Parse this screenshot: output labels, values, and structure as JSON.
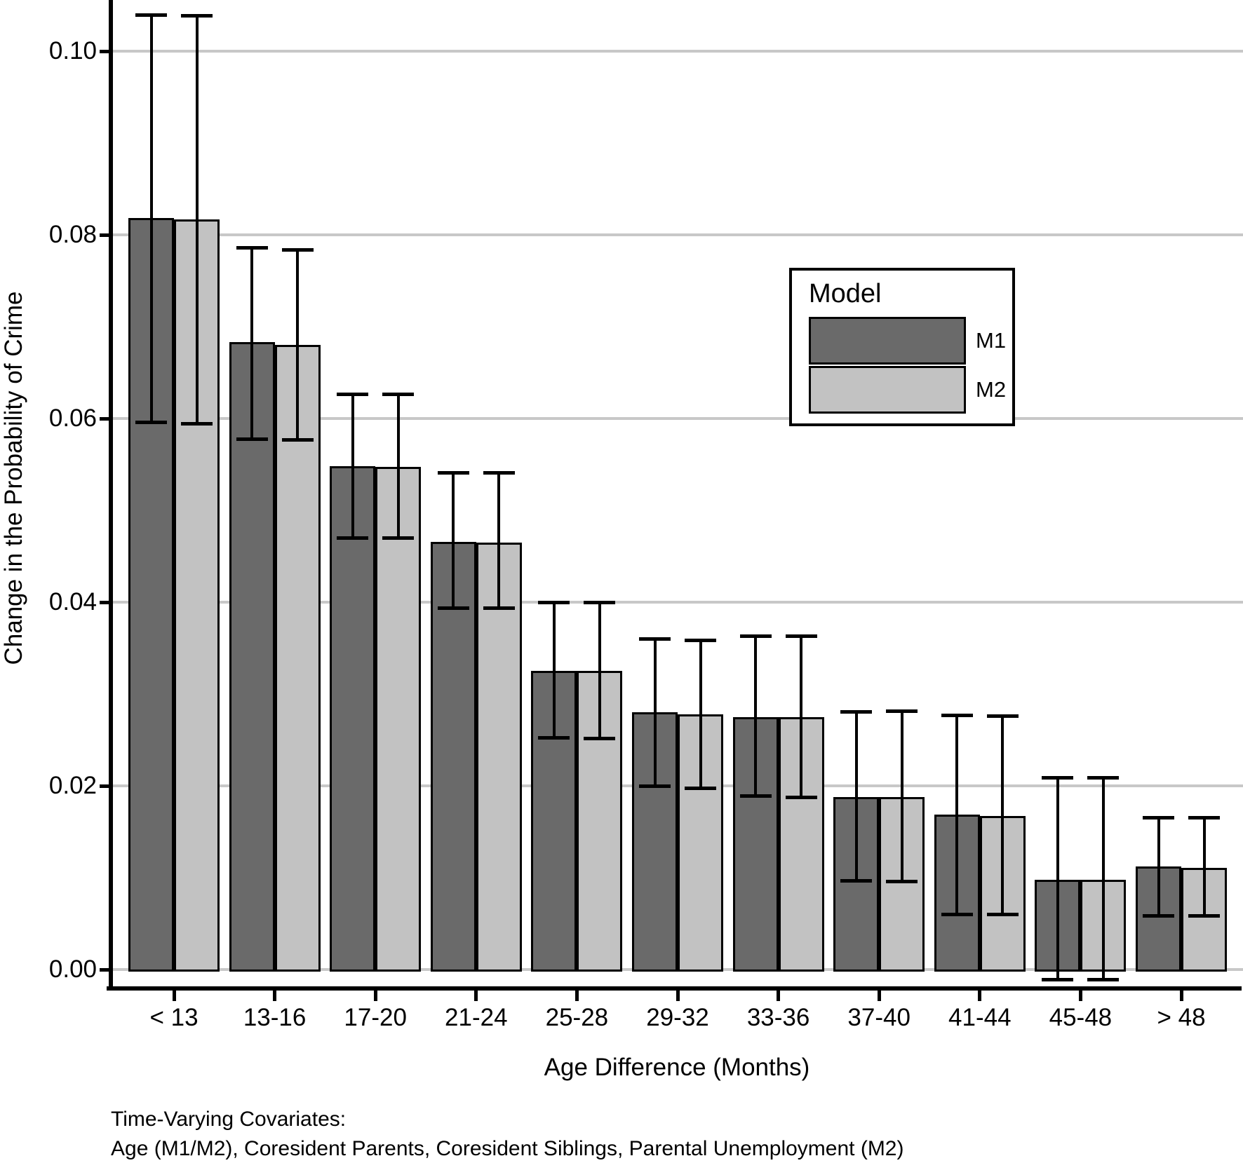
{
  "figure": {
    "background": "#ffffff",
    "legend": {
      "title": "Model",
      "entries": [
        {
          "label": "M1",
          "color": "#6a6a6a"
        },
        {
          "label": "M2",
          "color": "#c2c2c2"
        }
      ]
    },
    "footnote": {
      "line1": "Time-Varying Covariates:",
      "line2": "Age (M1/M2), Coresident Parents, Coresident Siblings, Parental Unemployment (M2)"
    },
    "colors": {
      "bar_dark": "#6a6a6a",
      "bar_light": "#c2c2c2",
      "gridline": "#c8c8c8",
      "axis": "#000000",
      "error_bar": "#000000"
    }
  },
  "chart_data": {
    "type": "bar",
    "title": "",
    "xlabel": "Age Difference (Months)",
    "ylabel": "Change in the Probability of Crime",
    "categories": [
      "< 13",
      "13-16",
      "17-20",
      "21-24",
      "25-28",
      "29-32",
      "33-36",
      "37-40",
      "41-44",
      "45-48",
      "> 48"
    ],
    "series": [
      {
        "name": "M1",
        "color": "#6a6a6a",
        "values": [
          0.0818,
          0.0683,
          0.0548,
          0.0466,
          0.0325,
          0.028,
          0.0275,
          0.0188,
          0.0169,
          0.0098,
          0.0112
        ],
        "ci_lower": [
          0.0596,
          0.0578,
          0.047,
          0.0394,
          0.0253,
          0.02,
          0.0189,
          0.0097,
          0.006,
          -0.0011,
          0.0059
        ],
        "ci_upper": [
          0.104,
          0.0786,
          0.0627,
          0.0541,
          0.04,
          0.036,
          0.0363,
          0.0281,
          0.0277,
          0.0209,
          0.0166
        ]
      },
      {
        "name": "M2",
        "color": "#c2c2c2",
        "values": [
          0.0817,
          0.068,
          0.0547,
          0.0465,
          0.0325,
          0.0278,
          0.0275,
          0.0188,
          0.0167,
          0.0098,
          0.0111
        ],
        "ci_lower": [
          0.0595,
          0.0577,
          0.047,
          0.0394,
          0.0252,
          0.0198,
          0.0188,
          0.0096,
          0.006,
          -0.0011,
          0.0059
        ],
        "ci_upper": [
          0.1039,
          0.0784,
          0.0627,
          0.0541,
          0.04,
          0.0359,
          0.0363,
          0.0282,
          0.0276,
          0.0209,
          0.0166
        ]
      }
    ],
    "yticks": {
      "values": [
        0.0,
        0.02,
        0.04,
        0.06,
        0.08,
        0.1
      ],
      "labels": [
        "0.00",
        "0.02",
        "0.04",
        "0.06",
        "0.08",
        "0.10"
      ]
    },
    "ylim": [
      -0.0021,
      0.1056
    ],
    "grid": "horizontal-only",
    "error_bars": true,
    "legend_position": "inside-upper-right"
  }
}
